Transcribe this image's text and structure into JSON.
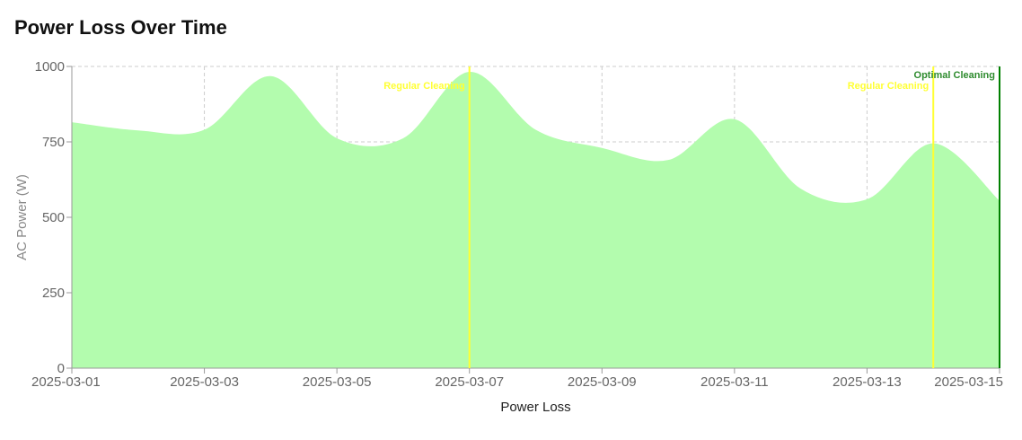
{
  "page": {
    "title": "Power Loss Over Time"
  },
  "chart_data": {
    "type": "area",
    "title": "Power Loss Over Time",
    "xlabel": "Power Loss",
    "ylabel": "AC Power (W)",
    "x": [
      "2025-03-01",
      "2025-03-02",
      "2025-03-03",
      "2025-03-04",
      "2025-03-05",
      "2025-03-06",
      "2025-03-07",
      "2025-03-08",
      "2025-03-09",
      "2025-03-10",
      "2025-03-11",
      "2025-03-12",
      "2025-03-13",
      "2025-03-14",
      "2025-03-15"
    ],
    "series": [
      {
        "values": [
          815,
          788,
          790,
          968,
          762,
          762,
          982,
          790,
          730,
          690,
          825,
          595,
          560,
          745,
          555
        ],
        "color": "#b3fcae"
      }
    ],
    "xlim": [
      "2025-03-01",
      "2025-03-15"
    ],
    "ylim": [
      0,
      1000
    ],
    "x_ticks": [
      "2025-03-01",
      "2025-03-03",
      "2025-03-05",
      "2025-03-07",
      "2025-03-09",
      "2025-03-11",
      "2025-03-13",
      "2025-03-15"
    ],
    "y_ticks": [
      0,
      250,
      500,
      750,
      1000
    ],
    "grid": true,
    "annotations": [
      {
        "x": "2025-03-07",
        "label": "Regular Cleaning",
        "color": "#ffff33"
      },
      {
        "x": "2025-03-14",
        "label": "Regular Cleaning",
        "color": "#ffff33"
      },
      {
        "x": "2025-03-15",
        "label": "Optimal Cleaning",
        "color": "#008000",
        "label_color": "#2e8b2e"
      }
    ]
  }
}
